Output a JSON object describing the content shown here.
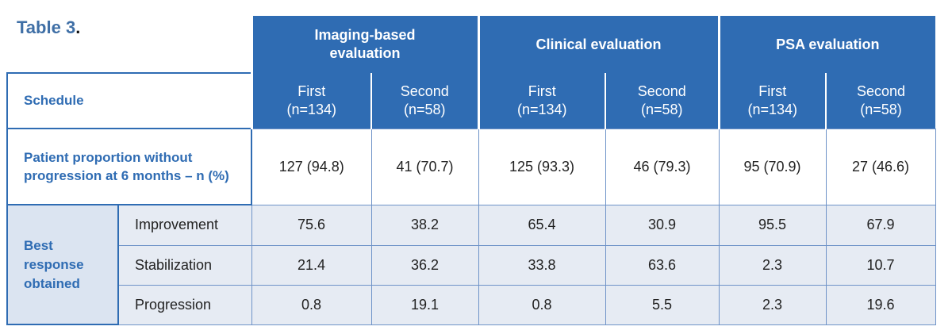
{
  "title": {
    "text": "Table 3",
    "punct": "."
  },
  "header": {
    "groups": [
      "Imaging-based evaluation",
      "Clinical evaluation",
      "PSA evaluation"
    ],
    "schedule": "Schedule",
    "subcolumns": [
      {
        "label": "First",
        "n": "(n=134)"
      },
      {
        "label": "Second",
        "n": "(n=58)"
      },
      {
        "label": "First",
        "n": "(n=134)"
      },
      {
        "label": "Second",
        "n": "(n=58)"
      },
      {
        "label": "First",
        "n": "(n=134)"
      },
      {
        "label": "Second",
        "n": "(n=58)"
      }
    ]
  },
  "rows": [
    {
      "label": "Patient proportion without progression at 6 months – n (%)",
      "cells": [
        "127 (94.8)",
        "41 (70.7)",
        "125 (93.3)",
        "46 (79.3)",
        "95 (70.9)",
        "27 (46.6)"
      ]
    }
  ],
  "best_response": {
    "label": "Best response obtained",
    "rows": [
      {
        "label": "Improvement",
        "cells": [
          "75.6",
          "38.2",
          "65.4",
          "30.9",
          "95.5",
          "67.9"
        ]
      },
      {
        "label": "Stabilization",
        "cells": [
          "21.4",
          "36.2",
          "33.8",
          "63.6",
          "2.3",
          "10.7"
        ]
      },
      {
        "label": "Progression",
        "cells": [
          "0.8",
          "19.1",
          "0.8",
          "5.5",
          "2.3",
          "19.6"
        ]
      }
    ]
  }
}
